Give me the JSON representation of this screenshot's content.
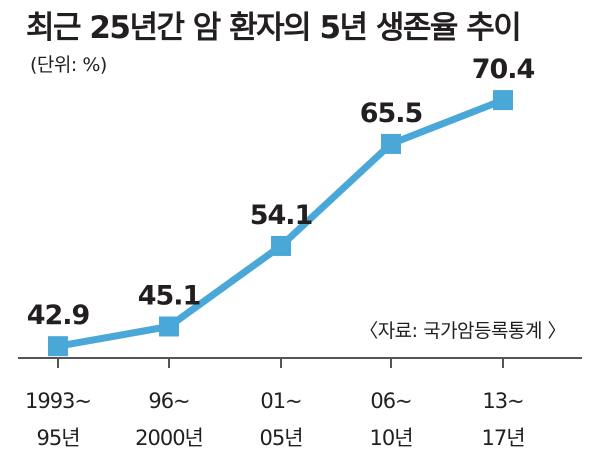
{
  "colors": {
    "series": "#4aa8d8",
    "marker": "#4aa8d8",
    "axis": "#555555",
    "text": "#231f20"
  },
  "chart_data": {
    "type": "line",
    "title": "최근 25년간 암 환자의 5년 생존율 추이",
    "unit_label": "(단위: %)",
    "source": "〈자료: 국가암등록통계 〉",
    "categories": [
      [
        "1993~",
        "95년"
      ],
      [
        "96~",
        "2000년"
      ],
      [
        "01~",
        "05년"
      ],
      [
        "06~",
        "10년"
      ],
      [
        "13~",
        "17년"
      ]
    ],
    "series": [
      {
        "values": [
          42.9,
          45.1,
          54.1,
          65.5,
          70.4
        ]
      }
    ],
    "value_labels": [
      "42.9",
      "45.1",
      "54.1",
      "65.5",
      "70.4"
    ],
    "ylim": [
      38,
      76
    ],
    "grid": false,
    "legend": "none"
  }
}
